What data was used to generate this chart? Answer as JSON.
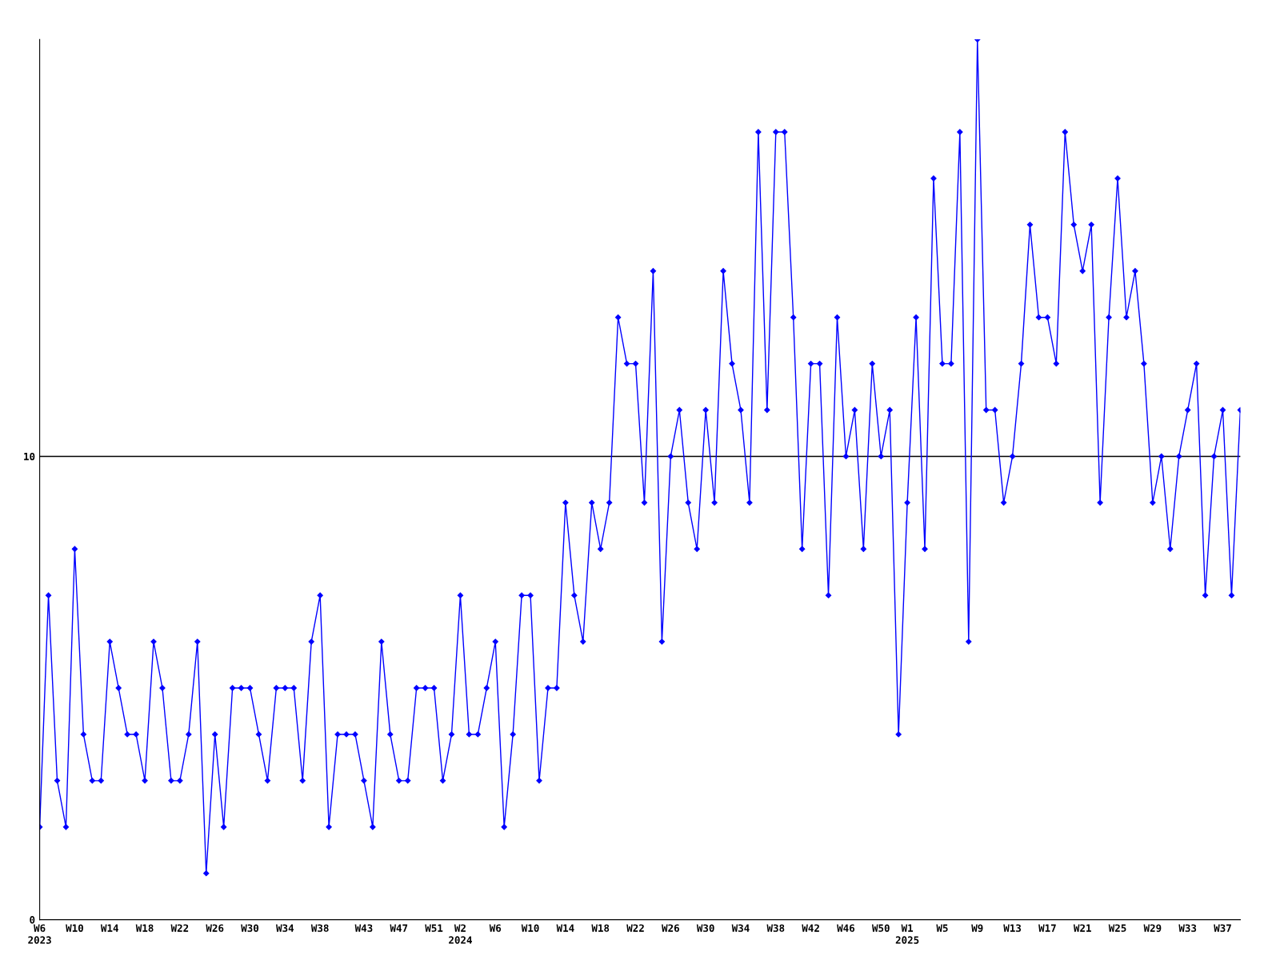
{
  "chart_data": {
    "type": "line",
    "categories": [
      "W6\n2023",
      null,
      null,
      null,
      "W10",
      null,
      null,
      null,
      "W14",
      null,
      null,
      null,
      "W18",
      null,
      null,
      null,
      "W22",
      null,
      null,
      null,
      "W26",
      null,
      null,
      null,
      "W30",
      null,
      null,
      null,
      "W34",
      null,
      null,
      null,
      "W38",
      null,
      null,
      null,
      null,
      "W43",
      null,
      null,
      null,
      "W47",
      null,
      null,
      null,
      "W51",
      null,
      null,
      "W2\n2024",
      null,
      null,
      null,
      "W6",
      null,
      null,
      null,
      "W10",
      null,
      null,
      null,
      "W14",
      null,
      null,
      null,
      "W18",
      null,
      null,
      null,
      "W22",
      null,
      null,
      null,
      "W26",
      null,
      null,
      null,
      "W30",
      null,
      null,
      null,
      "W34",
      null,
      null,
      null,
      "W38",
      null,
      null,
      null,
      "W42",
      null,
      null,
      null,
      "W46",
      null,
      null,
      null,
      "W50",
      null,
      null,
      "W1\n2025",
      null,
      null,
      null,
      "W5",
      null,
      null,
      null,
      "W9",
      null,
      null,
      null,
      "W13",
      null,
      null,
      null,
      "W17",
      null,
      null,
      null,
      "W21",
      null,
      null,
      null,
      "W25",
      null,
      null,
      null,
      "W29",
      null,
      null,
      null,
      "W33",
      null,
      null,
      null,
      "W37",
      null,
      null
    ],
    "series": [
      {
        "color": "#0000ff",
        "values": [
          2,
          7,
          3,
          2,
          8,
          4,
          3,
          3,
          6,
          5,
          4,
          4,
          3,
          6,
          5,
          3,
          3,
          4,
          6,
          1,
          4,
          2,
          5,
          5,
          5,
          4,
          3,
          5,
          5,
          5,
          3,
          6,
          7,
          2,
          4,
          4,
          4,
          3,
          2,
          6,
          4,
          3,
          3,
          5,
          5,
          5,
          3,
          4,
          7,
          4,
          4,
          5,
          6,
          2,
          4,
          7,
          7,
          3,
          5,
          5,
          9,
          7,
          6,
          9,
          8,
          9,
          13,
          12,
          12,
          9,
          14,
          6,
          10,
          11,
          9,
          8,
          11,
          9,
          14,
          12,
          11,
          9,
          17,
          11,
          17,
          17,
          13,
          8,
          12,
          12,
          7,
          13,
          10,
          11,
          8,
          12,
          10,
          11,
          4,
          9,
          13,
          8,
          16,
          12,
          12,
          17,
          6,
          19,
          11,
          11,
          9,
          10,
          12,
          15,
          13,
          13,
          12,
          17,
          15,
          14,
          15,
          9,
          13,
          16,
          13,
          14,
          12,
          9,
          10,
          8,
          10,
          11,
          12,
          7,
          10,
          11,
          7,
          11
        ]
      }
    ],
    "ylim": [
      0,
      19
    ],
    "yticks": [
      0,
      10
    ],
    "grid": "y",
    "marker": "diamond",
    "line_style": "solid",
    "legend": false
  }
}
